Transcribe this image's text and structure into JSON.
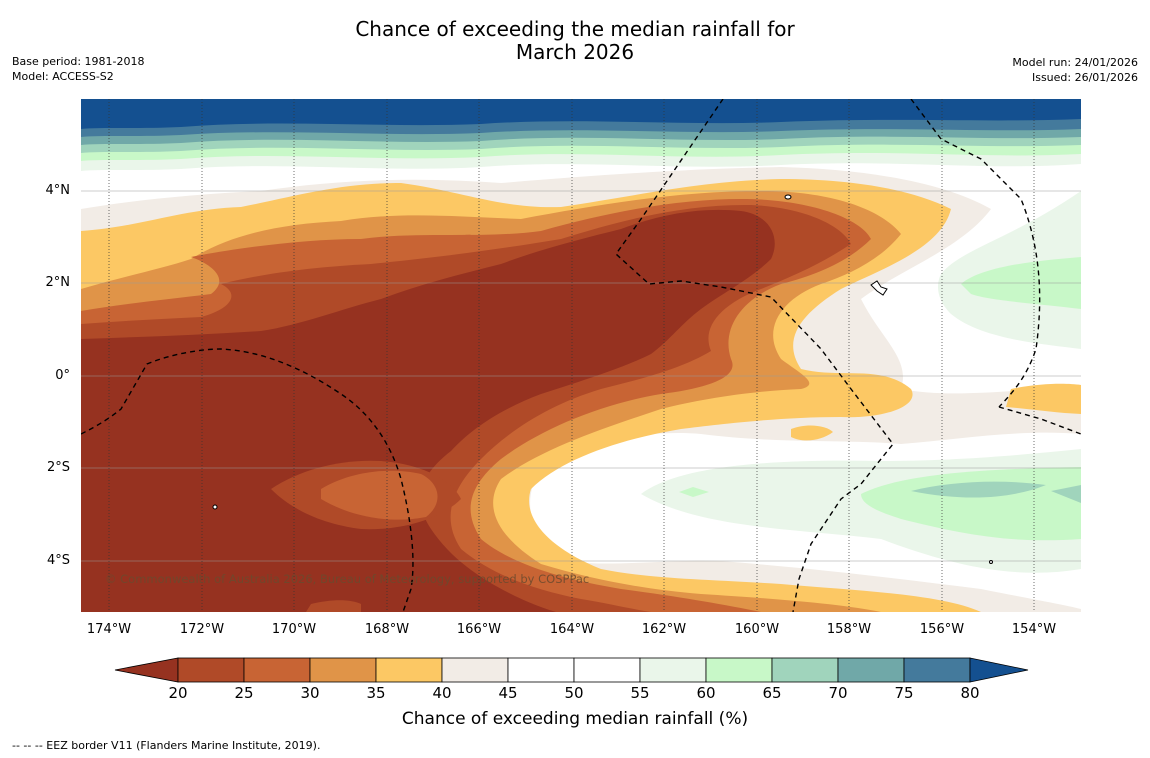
{
  "header": {
    "title_line1": "Chance of exceeding the median rainfall for",
    "title_line2": "March 2026",
    "base_period": "Base period: 1981-2018",
    "model": "Model: ACCESS-S2",
    "model_run": "Model run: 24/01/2026",
    "issued": "Issued: 26/01/2026"
  },
  "map": {
    "lat_labels": [
      "4°N",
      "2°N",
      "0°",
      "2°S",
      "4°S"
    ],
    "lon_labels": [
      "174°W",
      "172°W",
      "170°W",
      "168°W",
      "166°W",
      "164°W",
      "162°W",
      "160°W",
      "158°W",
      "156°W",
      "154°W"
    ],
    "credit": "© Commonwealth of Australia 2026, Bureau of Meteorology, supported by COSPPac"
  },
  "legend": {
    "ticks": [
      "20",
      "25",
      "30",
      "35",
      "40",
      "45",
      "50",
      "55",
      "60",
      "65",
      "70",
      "75",
      "80"
    ],
    "colors": [
      "#963220",
      "#b04a28",
      "#c86434",
      "#e09448",
      "#fcc864",
      "#f2ece6",
      "#ffffff",
      "#ffffff",
      "#eaf6ea",
      "#c8f8c8",
      "#a0d4bc",
      "#70a8a8",
      "#447a9c",
      "#145090"
    ],
    "label": "Chance of exceeding median rainfall (%)"
  },
  "footnote": "--  --  -- EEZ border V11 (Flanders Marine Institute, 2019)."
}
